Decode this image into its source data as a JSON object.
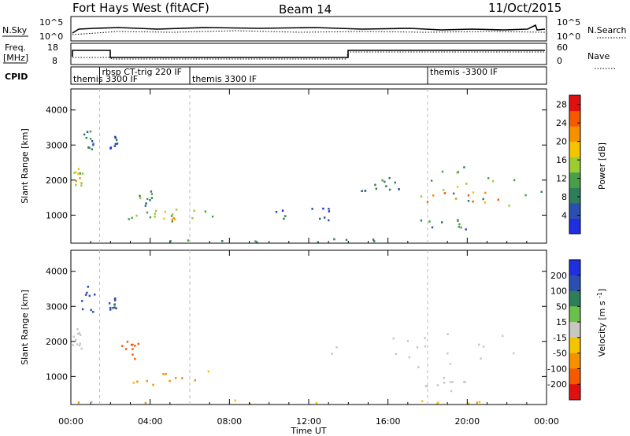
{
  "header": {
    "station": "Fort Hays West (fitACF)",
    "beam": "Beam 14",
    "date": "11/Oct/2015"
  },
  "noise_panel": {
    "left_label": "N.Sky",
    "right_label": "N.Search",
    "ticks": [
      "10^5",
      "10^0"
    ]
  },
  "freq_panel": {
    "left_label_line1": "Freq.",
    "left_label_line2": "[MHz]",
    "right_label": "Nave",
    "left_ticks": [
      "18",
      "8"
    ],
    "right_ticks": [
      "60",
      "0"
    ]
  },
  "cpid_panel": {
    "label": "CPID",
    "annotations": [
      {
        "text": "themis 3300 IF",
        "t": 0.0,
        "row": 2
      },
      {
        "text": "rbsp CT-trig 220 IF",
        "t": 1.45,
        "row": 1
      },
      {
        "text": "themis 3300 IF",
        "t": 6.0,
        "row": 2
      },
      {
        "text": "themis -3300 IF",
        "t": 18.0,
        "row": 1
      }
    ]
  },
  "colors": {
    "power_scale": [
      "#1f2fe0",
      "#2b4fb0",
      "#2e7d5b",
      "#4a9e4a",
      "#9acd32",
      "#f5c400",
      "#f59000",
      "#f55a00",
      "#e01010"
    ],
    "velocity_scale": [
      "#1f2fe0",
      "#2b4fb0",
      "#2e7d5b",
      "#6ac04a",
      "#c8c8c0",
      "#f5c400",
      "#f59000",
      "#f55a00",
      "#e01010"
    ]
  },
  "chart_data": [
    {
      "type": "heatmap",
      "name": "power",
      "ylabel": "Slant Range [km]",
      "xlabel": "",
      "x_ticks": [
        "00:00",
        "04:00",
        "08:00",
        "12:00",
        "16:00",
        "20:00",
        "00:00"
      ],
      "y_ticks": [
        "1000",
        "2000",
        "3000",
        "4000"
      ],
      "xlim": [
        0,
        24
      ],
      "ylim": [
        200,
        4600
      ],
      "colorbar_label": "Power [dB]",
      "colorbar_ticks": [
        "4",
        "8",
        "12",
        "16",
        "20",
        "24",
        "28"
      ],
      "colorbar_range": [
        0,
        30
      ],
      "dashed_times": [
        1.45,
        6.0,
        18.0
      ],
      "blobs": [
        {
          "t0": 0.0,
          "t1": 0.6,
          "r0": 1800,
          "r1": 2400,
          "v": 18
        },
        {
          "t0": 2.6,
          "t1": 7.4,
          "r0": 750,
          "r1": 1350,
          "v": 14
        },
        {
          "t0": 3.0,
          "t1": 6.5,
          "r0": 850,
          "r1": 1250,
          "v": 20
        },
        {
          "t0": 3.2,
          "t1": 4.3,
          "r0": 1350,
          "r1": 1750,
          "v": 12
        },
        {
          "t0": 0.5,
          "t1": 1.3,
          "r0": 2800,
          "r1": 3600,
          "v": 10
        },
        {
          "t0": 1.9,
          "t1": 2.3,
          "r0": 2900,
          "r1": 3300,
          "v": 8
        },
        {
          "t0": 16.0,
          "t1": 23.9,
          "r0": 1300,
          "r1": 2400,
          "v": 14
        },
        {
          "t0": 17.0,
          "t1": 22.5,
          "r0": 1300,
          "r1": 1800,
          "v": 24
        },
        {
          "t0": 17.5,
          "t1": 20.0,
          "r0": 600,
          "r1": 1000,
          "v": 12
        },
        {
          "t0": 14.5,
          "t1": 17.0,
          "r0": 1700,
          "r1": 2100,
          "v": 10
        },
        {
          "t0": 9.5,
          "t1": 13.5,
          "r0": 800,
          "r1": 1300,
          "v": 6
        },
        {
          "t0": 0.0,
          "t1": 24.0,
          "r0": 200,
          "r1": 350,
          "v": 10
        }
      ]
    },
    {
      "type": "heatmap",
      "name": "velocity",
      "ylabel": "Slant Range [km]",
      "xlabel": "Time UT",
      "x_ticks": [
        "00:00",
        "04:00",
        "08:00",
        "12:00",
        "16:00",
        "20:00",
        "00:00"
      ],
      "y_ticks": [
        "1000",
        "2000",
        "3000",
        "4000"
      ],
      "xlim": [
        0,
        24
      ],
      "ylim": [
        200,
        4600
      ],
      "colorbar_label": "Velocity [m s^-1]",
      "colorbar_ticks": [
        "200",
        "100",
        "50",
        "15",
        "-15",
        "-50",
        "-100",
        "-200"
      ],
      "dashed_times": [
        1.45,
        6.0,
        18.0
      ],
      "blobs": [
        {
          "t0": 0.0,
          "t1": 0.5,
          "r0": 1800,
          "r1": 2400,
          "v": 0
        },
        {
          "t0": 2.5,
          "t1": 3.5,
          "r0": 1500,
          "r1": 2200,
          "v": -150
        },
        {
          "t0": 2.8,
          "t1": 7.3,
          "r0": 750,
          "r1": 1300,
          "v": -60
        },
        {
          "t0": 0.4,
          "t1": 1.3,
          "r0": 2800,
          "r1": 3600,
          "v": 150
        },
        {
          "t0": 1.9,
          "t1": 2.3,
          "r0": 2900,
          "r1": 3300,
          "v": 120
        },
        {
          "t0": 13.0,
          "t1": 23.9,
          "r0": 1200,
          "r1": 2400,
          "v": 0
        },
        {
          "t0": 17.5,
          "t1": 20.0,
          "r0": 600,
          "r1": 1000,
          "v": 0
        },
        {
          "t0": 0.0,
          "t1": 24.0,
          "r0": 200,
          "r1": 350,
          "v": -40
        }
      ]
    }
  ]
}
